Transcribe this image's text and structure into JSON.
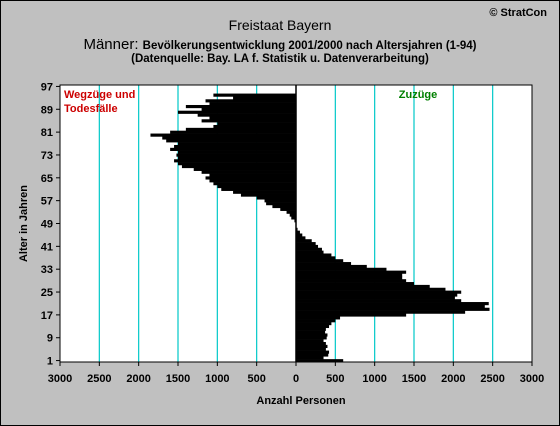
{
  "header": {
    "title": "Freistaat Bayern",
    "subtitle_prefix": "Männer: ",
    "subtitle_rest": "Bevölkerungsentwicklung 2001/2000 nach Altersjahren (1-94)",
    "source": "(Datenquelle: Bay. LA f. Statistik u. Datenverarbeitung)",
    "copyright": "© StratCon"
  },
  "colors": {
    "panel_bg": "#c0c0c0",
    "plot_bg": "#ffffff",
    "bars": "#000000",
    "gridlines": "#00c8c8",
    "left_label": "#cc0000",
    "right_label": "#008000"
  },
  "chart_data": {
    "type": "bar",
    "orientation": "horizontal",
    "title": "Freistaat Bayern",
    "subtitle": "Männer: Bevölkerungsentwicklung 2001/2000 nach Altersjahren (1-94)",
    "xlabel": "Anzahl Personen",
    "ylabel": "Alter in Jahren",
    "xlim": [
      -3000,
      3000
    ],
    "ylim": [
      0.5,
      97.5
    ],
    "x_ticks": [
      -3000,
      -2500,
      -2000,
      -1500,
      -1000,
      -500,
      0,
      500,
      1000,
      1500,
      2000,
      2500,
      3000
    ],
    "x_tick_labels": [
      "3000",
      "2500",
      "2000",
      "1500",
      "1000",
      "500",
      "0",
      "500",
      "1000",
      "1500",
      "2000",
      "2500",
      "3000"
    ],
    "y_ticks": [
      1,
      9,
      17,
      25,
      33,
      41,
      49,
      57,
      65,
      73,
      81,
      89,
      97
    ],
    "grid": "vertical",
    "left_label": "Wegzüge und Todesfälle",
    "right_label": "Zuzüge",
    "categories": [
      1,
      2,
      3,
      4,
      5,
      6,
      7,
      8,
      9,
      10,
      11,
      12,
      13,
      14,
      15,
      16,
      17,
      18,
      19,
      20,
      21,
      22,
      23,
      24,
      25,
      26,
      27,
      28,
      29,
      30,
      31,
      32,
      33,
      34,
      35,
      36,
      37,
      38,
      39,
      40,
      41,
      42,
      43,
      44,
      45,
      46,
      47,
      48,
      49,
      50,
      51,
      52,
      53,
      54,
      55,
      56,
      57,
      58,
      59,
      60,
      61,
      62,
      63,
      64,
      65,
      66,
      67,
      68,
      69,
      70,
      71,
      72,
      73,
      74,
      75,
      76,
      77,
      78,
      79,
      80,
      81,
      82,
      83,
      84,
      85,
      86,
      87,
      88,
      89,
      90,
      91,
      92,
      93,
      94
    ],
    "series": [
      {
        "values": [
          600,
          350,
          410,
          420,
          380,
          400,
          380,
          350,
          390,
          400,
          370,
          380,
          420,
          450,
          500,
          560,
          1400,
          2150,
          2460,
          2400,
          2450,
          2100,
          2020,
          2050,
          2100,
          1900,
          1700,
          1500,
          1400,
          1350,
          1350,
          1400,
          1150,
          900,
          700,
          600,
          500,
          450,
          350,
          330,
          280,
          250,
          200,
          120,
          80,
          50,
          20,
          0,
          0,
          -20,
          -60,
          -80,
          -120,
          -200,
          -300,
          -380,
          -400,
          -500,
          -700,
          -800,
          -950,
          -1000,
          -1050,
          -1100,
          -1150,
          -1100,
          -1200,
          -1300,
          -1450,
          -1500,
          -1550,
          -1500,
          -1520,
          -1500,
          -1600,
          -1550,
          -1500,
          -1650,
          -1700,
          -1850,
          -1600,
          -1400,
          -1050,
          -1000,
          -1200,
          -1100,
          -1250,
          -1500,
          -1200,
          -1400,
          -1100,
          -1150,
          -800,
          -1050
        ]
      }
    ]
  }
}
